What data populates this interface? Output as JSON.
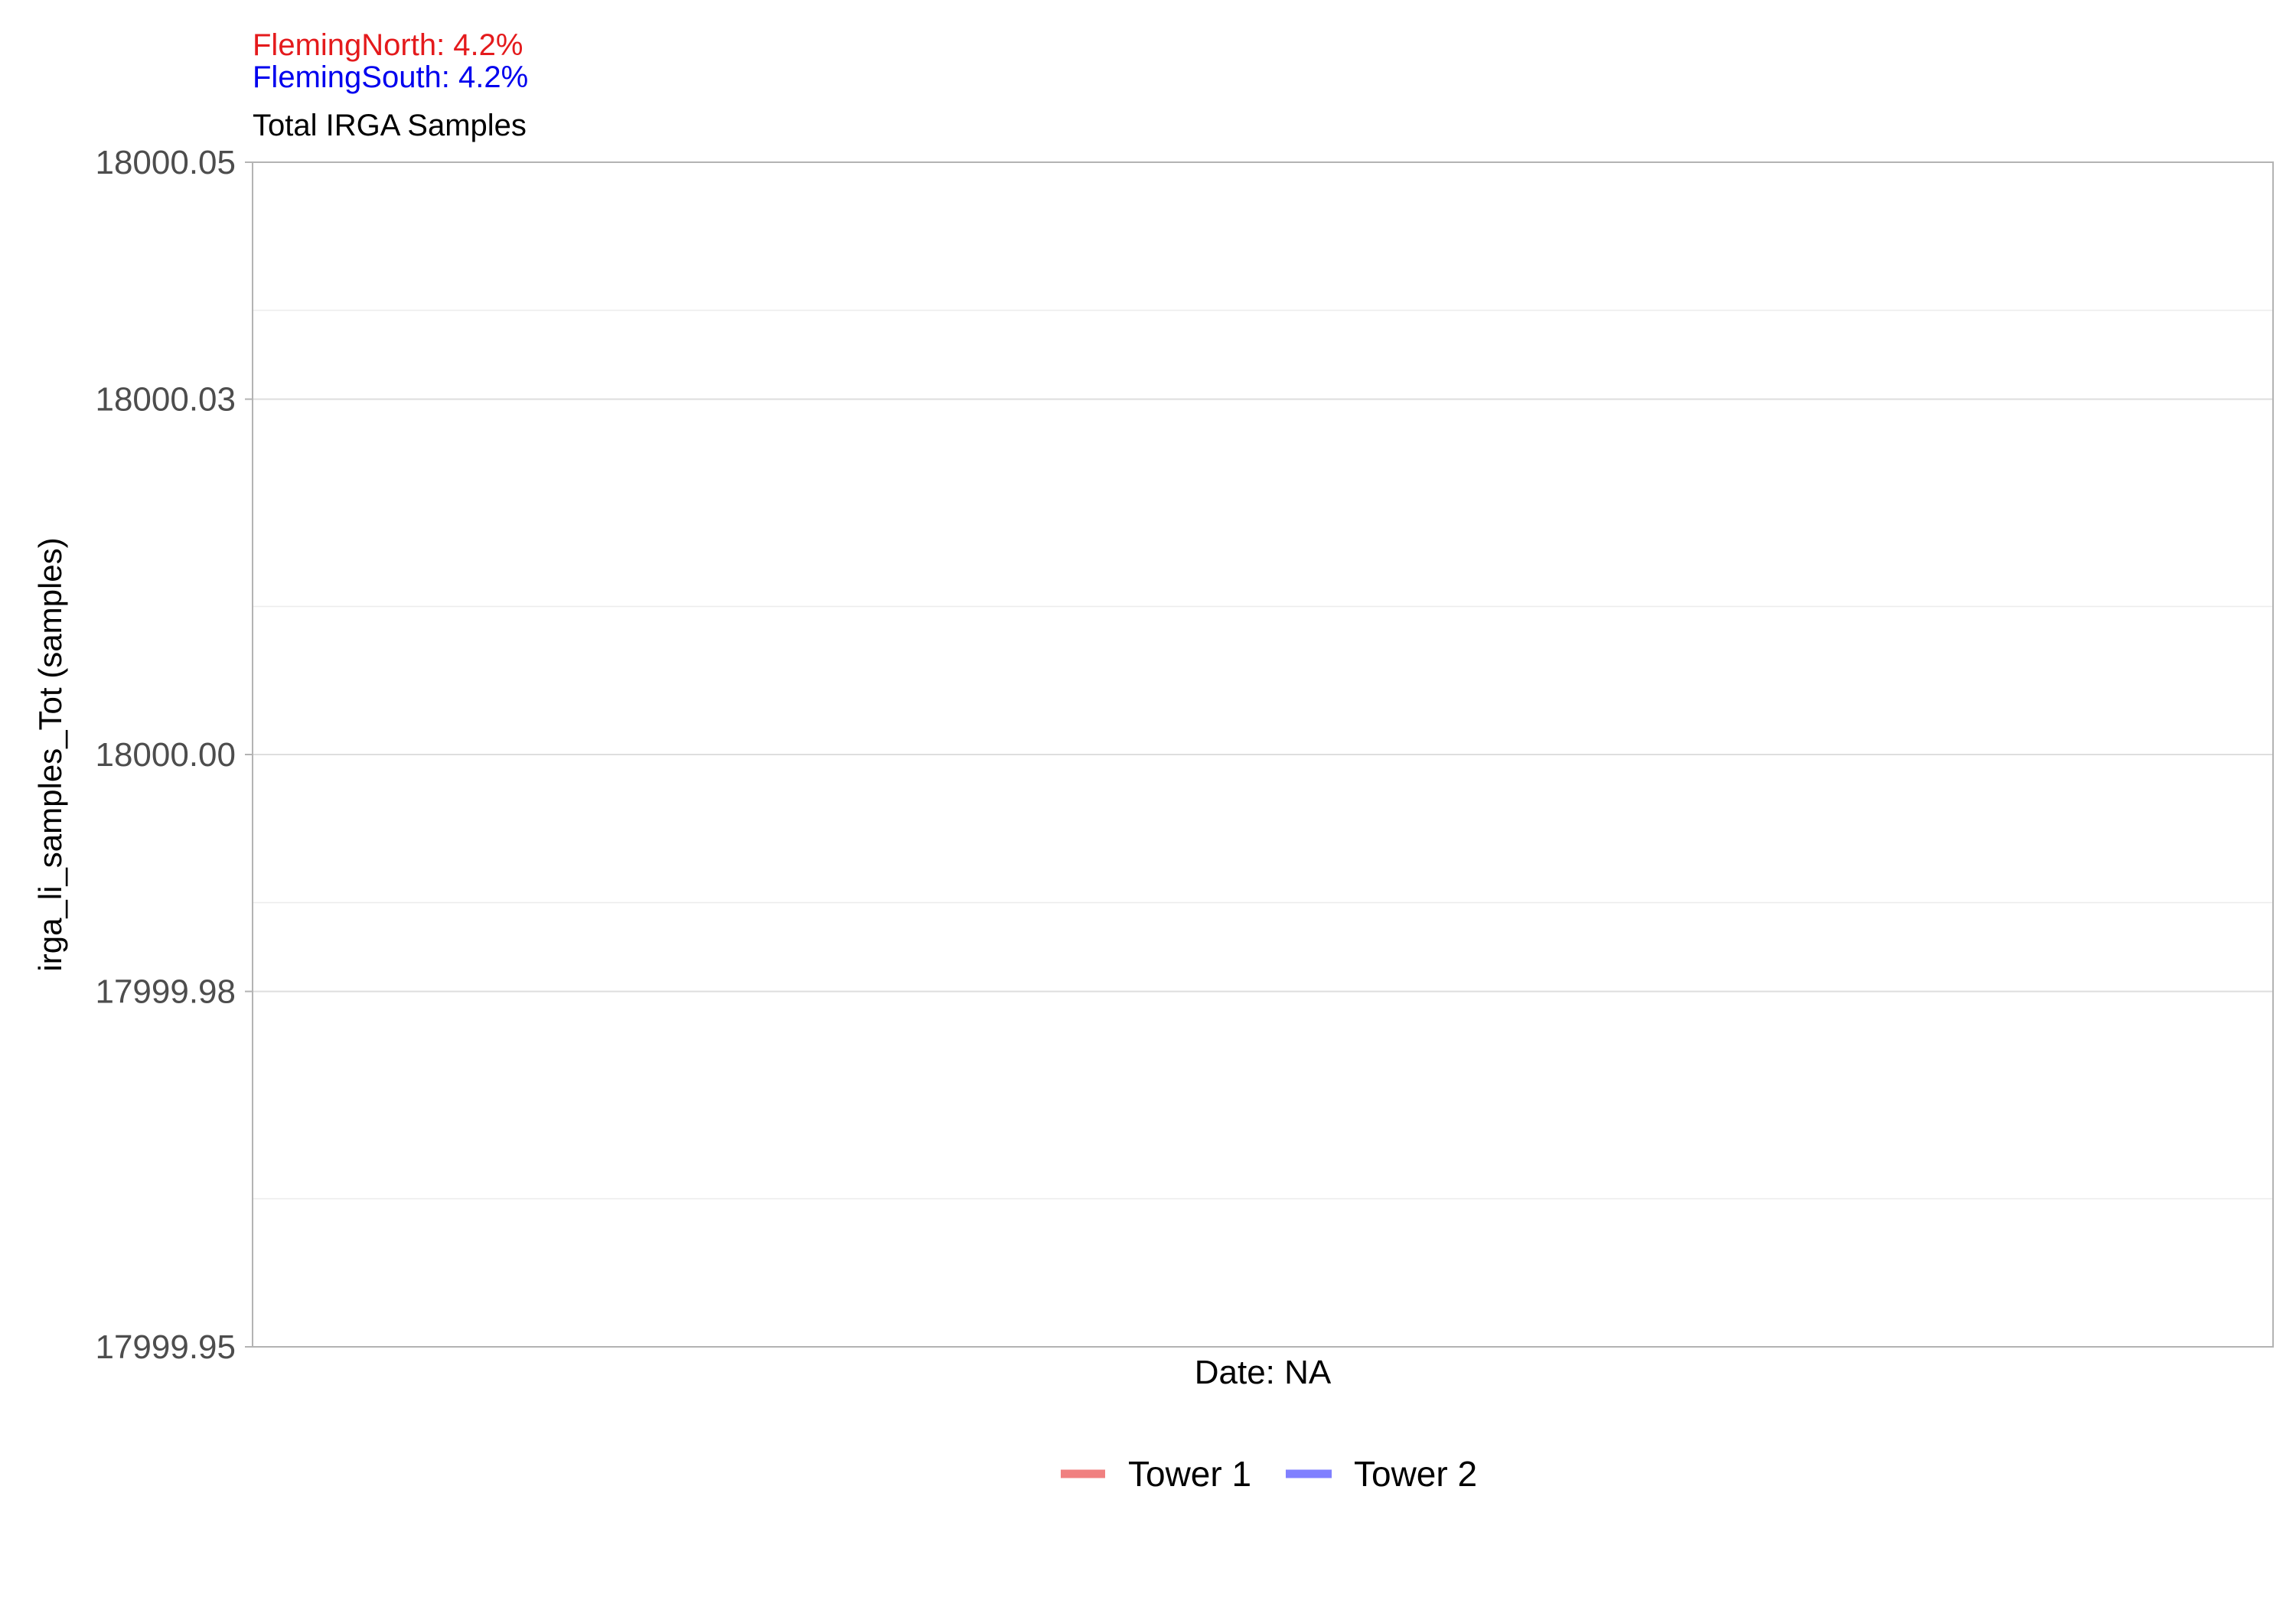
{
  "chart_data": {
    "type": "line",
    "title": "Total IRGA Samples",
    "annotations": [
      {
        "text": "FlemingNorth: 4.2%",
        "color": "#e41a1c"
      },
      {
        "text": "FlemingSouth: 4.2%",
        "color": "#0000ee"
      }
    ],
    "xlabel": "Date: NA",
    "ylabel": "irga_li_samples_Tot (samples)",
    "ylim": [
      17999.95,
      18000.05
    ],
    "y_ticks": [
      17999.95,
      17999.98,
      18000.0,
      18000.03,
      18000.05
    ],
    "y_tick_labels": [
      "17999.95",
      "17999.98",
      "18000.00",
      "18000.03",
      "18000.05"
    ],
    "y_minor_ticks": [
      17999.9625,
      17999.9875,
      18000.0125,
      18000.0375
    ],
    "grid": true,
    "legend_position": "bottom",
    "series": [
      {
        "name": "Tower 1",
        "color": "#f08080",
        "values": []
      },
      {
        "name": "Tower 2",
        "color": "#8080ff",
        "values": []
      }
    ]
  }
}
